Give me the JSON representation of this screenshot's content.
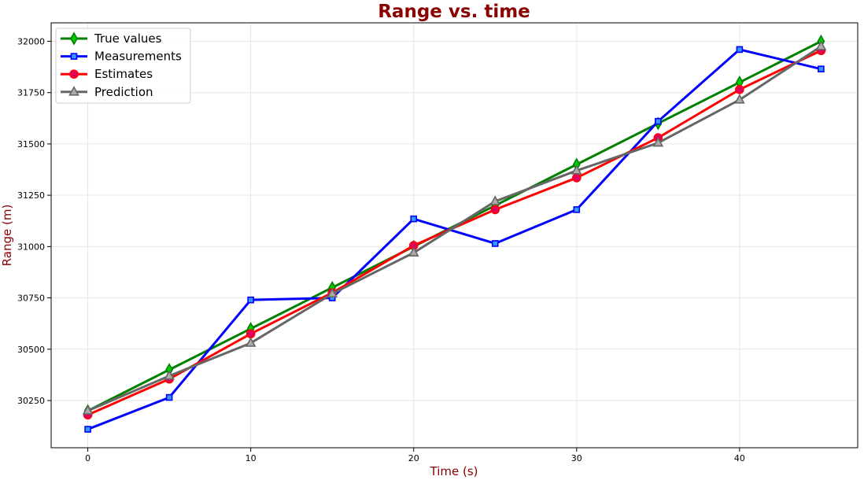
{
  "chart_data": {
    "type": "line",
    "title": "Range vs. time",
    "xlabel": "Time (s)",
    "ylabel": "Range (m)",
    "x": [
      0,
      5,
      10,
      15,
      20,
      25,
      30,
      35,
      40,
      45
    ],
    "xlim": [
      -2.25,
      47.25
    ],
    "ylim": [
      30020,
      32090
    ],
    "xticks": [
      0,
      10,
      20,
      30,
      40
    ],
    "yticks": [
      30250,
      30500,
      30750,
      31000,
      31250,
      31500,
      31750,
      32000
    ],
    "grid": true,
    "legend_position": "upper left",
    "series": [
      {
        "name": "True values",
        "values": [
          30200,
          30400,
          30600,
          30800,
          31000,
          31200,
          31400,
          31600,
          31800,
          32000
        ],
        "color": "#008000",
        "marker": "diamond",
        "marker_fill": "#00cc00"
      },
      {
        "name": "Measurements",
        "values": [
          30110,
          30265,
          30740,
          30750,
          31135,
          31015,
          31180,
          31610,
          31960,
          31865
        ],
        "color": "#0000ff",
        "marker": "square",
        "marker_fill": "#3399ff"
      },
      {
        "name": "Estimates",
        "values": [
          30180,
          30355,
          30575,
          30775,
          31005,
          31180,
          31335,
          31530,
          31765,
          31955
        ],
        "color": "#ff0000",
        "marker": "circle",
        "marker_fill": "#e0005f"
      },
      {
        "name": "Prediction",
        "values": [
          30200,
          30370,
          30530,
          30770,
          30970,
          31220,
          31370,
          31505,
          31715,
          31975
        ],
        "color": "#666666",
        "marker": "triangle",
        "marker_fill": "#aaaaaa"
      }
    ]
  },
  "colors": {
    "title": "#8b0000",
    "axis_label": "#8b0000",
    "grid": "#e6e6e6"
  }
}
